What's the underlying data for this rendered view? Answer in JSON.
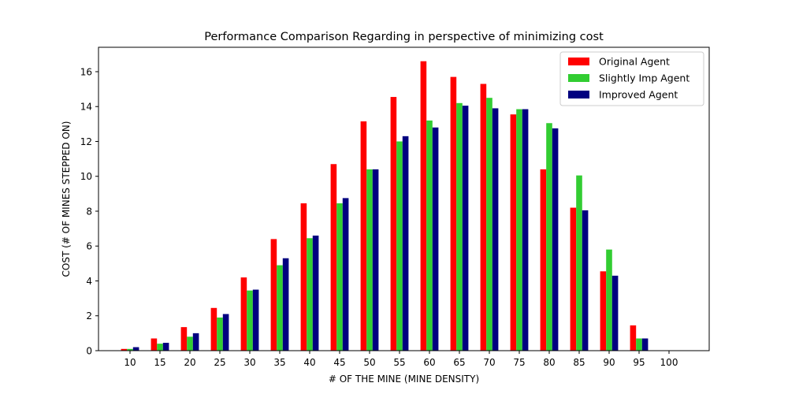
{
  "chart_data": {
    "type": "bar",
    "title": "Performance Comparison Regarding in perspective of minimizing cost",
    "xlabel": "# OF THE MINE (MINE DENSITY)",
    "ylabel": "COST (# OF MINES STEPPED ON)",
    "categories": [
      "10",
      "15",
      "20",
      "25",
      "30",
      "35",
      "40",
      "45",
      "50",
      "55",
      "60",
      "65",
      "70",
      "75",
      "80",
      "85",
      "90",
      "95",
      "100"
    ],
    "yticks": [
      "0",
      "2",
      "4",
      "6",
      "8",
      "10",
      "12",
      "14",
      "16"
    ],
    "ylim": [
      0,
      17.4
    ],
    "legend_position": "top-right",
    "grid": false,
    "series": [
      {
        "name": "Original Agent",
        "color": "#ff0000",
        "values": [
          0.1,
          0.7,
          1.35,
          2.45,
          4.2,
          6.4,
          8.45,
          10.7,
          13.15,
          14.55,
          16.6,
          15.7,
          15.3,
          13.55,
          10.4,
          8.2,
          4.55,
          1.45,
          0
        ]
      },
      {
        "name": "Slightly Imp Agent",
        "color": "#32cd32",
        "values": [
          0.1,
          0.4,
          0.8,
          1.9,
          3.45,
          4.9,
          6.45,
          8.45,
          10.4,
          12.0,
          13.2,
          14.2,
          14.5,
          13.85,
          13.05,
          10.05,
          5.8,
          0.7,
          0
        ]
      },
      {
        "name": "Improved Agent",
        "color": "#000080",
        "values": [
          0.2,
          0.45,
          1.0,
          2.1,
          3.5,
          5.3,
          6.6,
          8.75,
          10.4,
          12.3,
          12.8,
          14.05,
          13.9,
          13.85,
          12.75,
          8.05,
          4.3,
          0.7,
          0
        ]
      }
    ]
  }
}
